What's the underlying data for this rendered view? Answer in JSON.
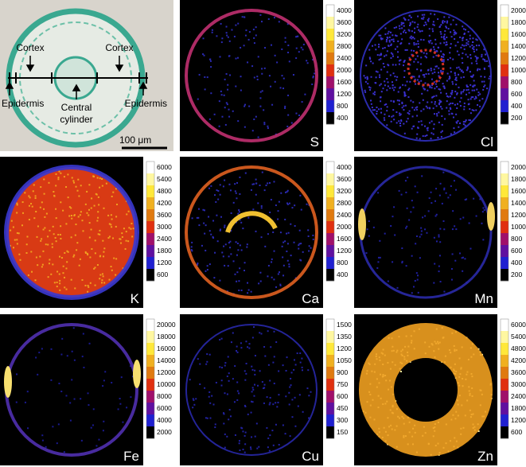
{
  "micrograph": {
    "cortex_left": "Cortex",
    "cortex_right": "Cortex",
    "epidermis_left": "Epidermis",
    "central_cylinder": [
      "Central",
      "cylinder"
    ],
    "epidermis_right": "Epidermis",
    "scale_bar": "100 μm"
  },
  "panels": [
    {
      "element": "S",
      "colorbar_ticks": [
        4000,
        3600,
        3200,
        2800,
        2400,
        2000,
        1600,
        1200,
        800,
        400
      ]
    },
    {
      "element": "Cl",
      "colorbar_ticks": [
        2000,
        1800,
        1600,
        1400,
        1200,
        1000,
        800,
        600,
        400,
        200
      ]
    },
    {
      "element": "K",
      "colorbar_ticks": [
        6000,
        5400,
        4800,
        4200,
        3600,
        3000,
        2400,
        1800,
        1200,
        600
      ]
    },
    {
      "element": "Ca",
      "colorbar_ticks": [
        4000,
        3600,
        3200,
        2800,
        2400,
        2000,
        1600,
        1200,
        800,
        400
      ]
    },
    {
      "element": "Mn",
      "colorbar_ticks": [
        2000,
        1800,
        1600,
        1400,
        1200,
        1000,
        800,
        600,
        400,
        200
      ]
    },
    {
      "element": "Fe",
      "colorbar_ticks": [
        20000,
        18000,
        16000,
        14000,
        12000,
        10000,
        8000,
        6000,
        4000,
        2000
      ]
    },
    {
      "element": "Cu",
      "colorbar_ticks": [
        1500,
        1350,
        1200,
        1050,
        900,
        750,
        600,
        450,
        300,
        150
      ]
    },
    {
      "element": "Zn",
      "colorbar_ticks": [
        6000,
        5400,
        4800,
        4200,
        3600,
        3000,
        2400,
        1800,
        1200,
        600
      ]
    }
  ]
}
